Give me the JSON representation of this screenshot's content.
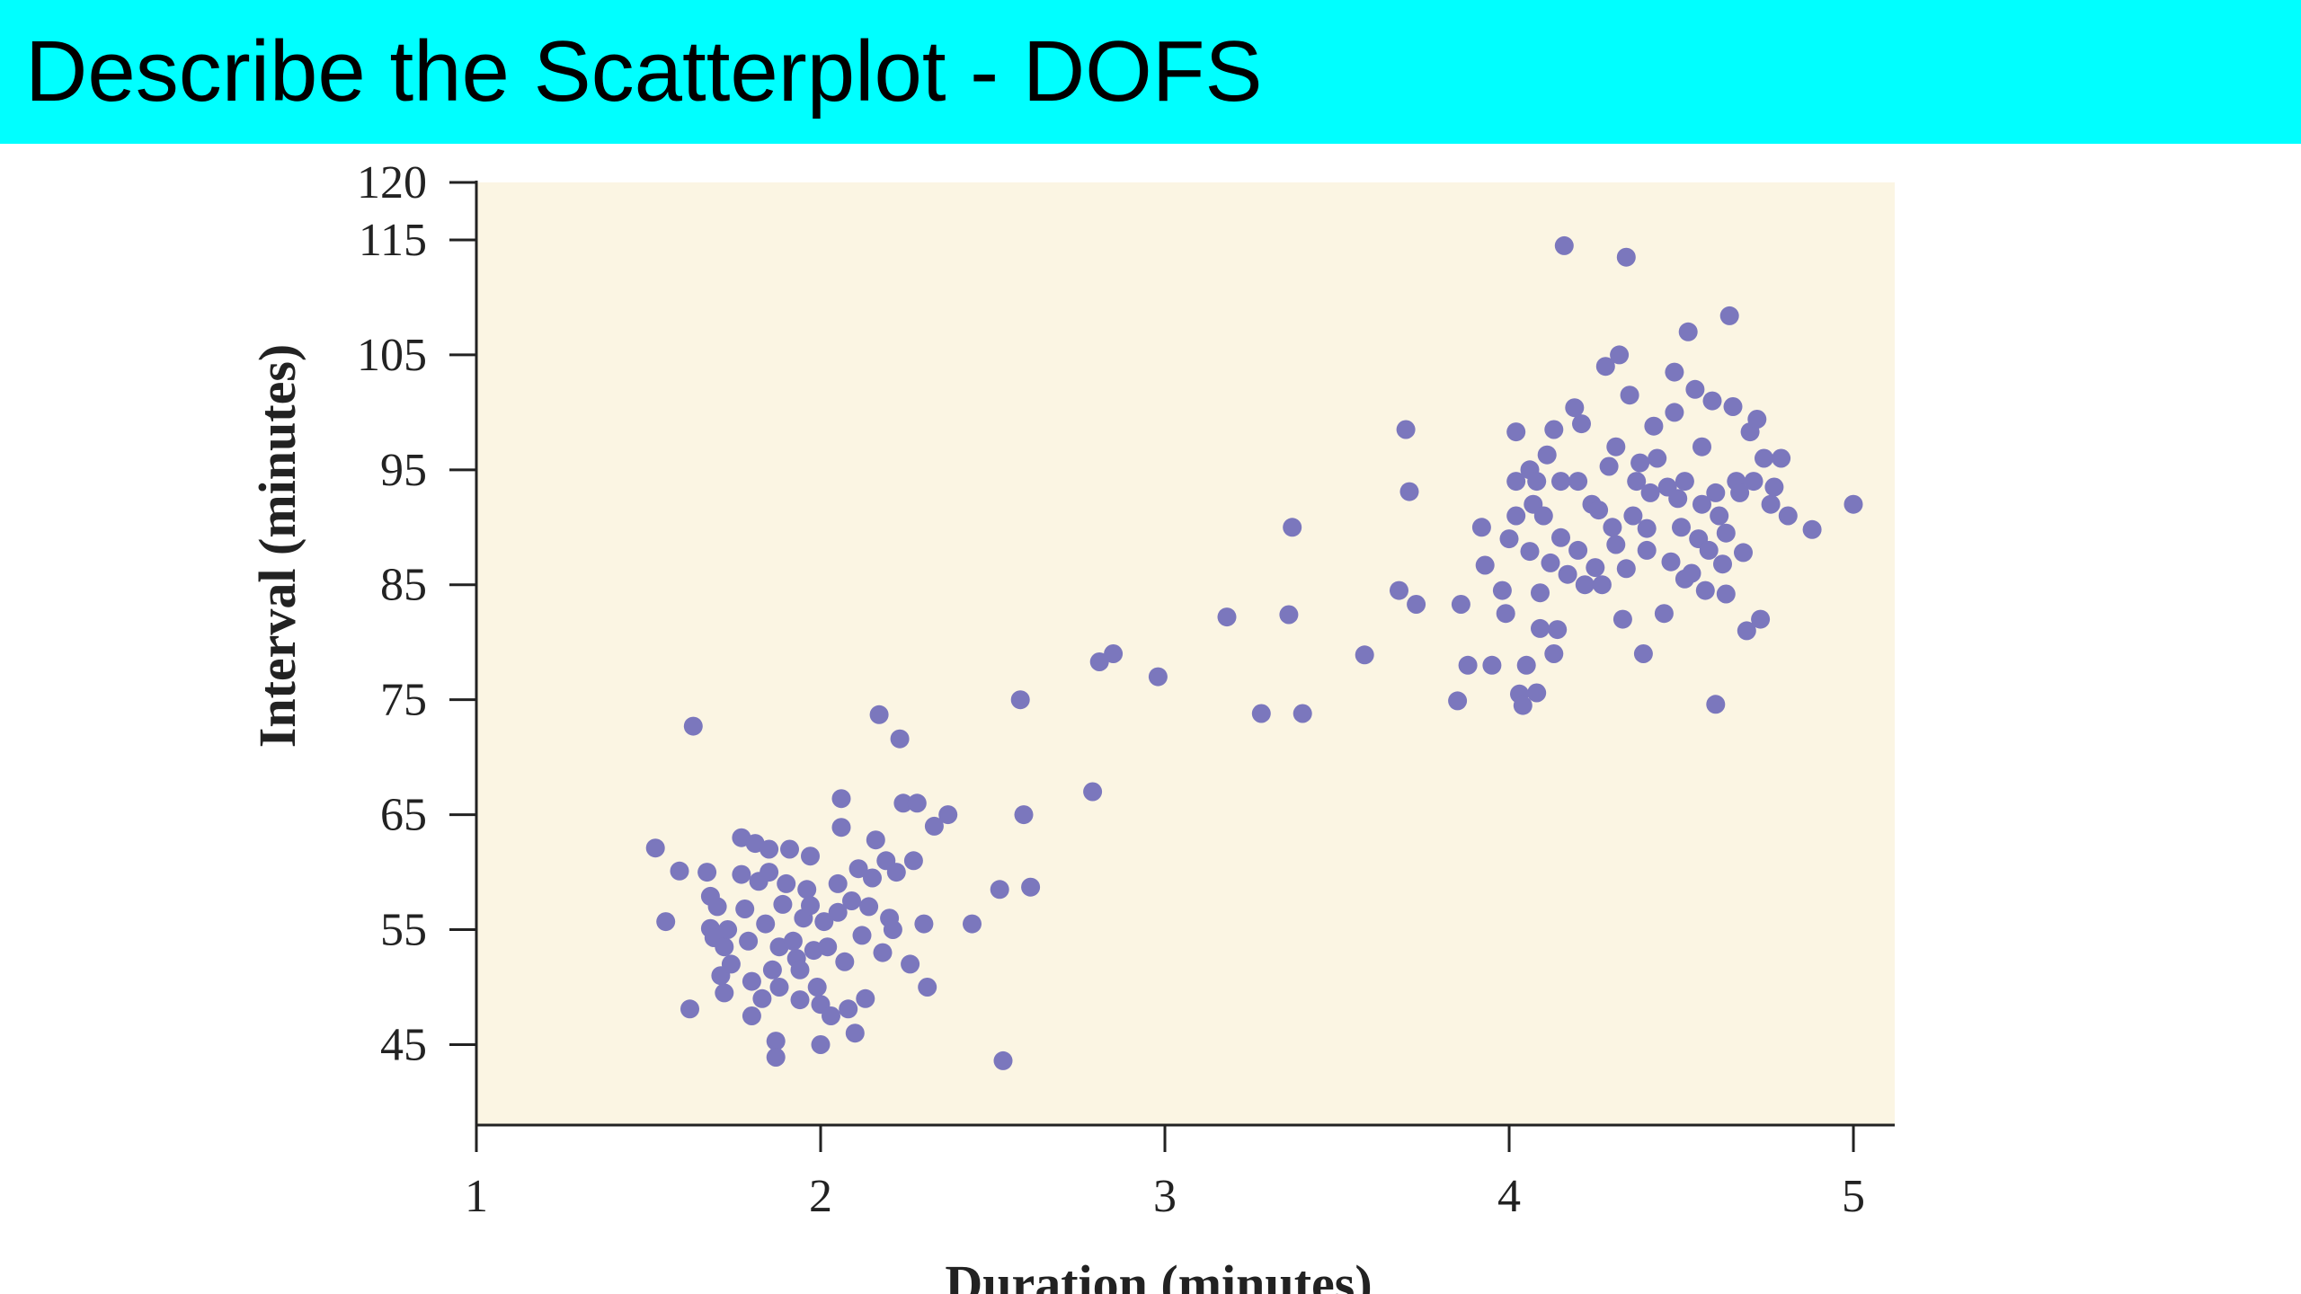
{
  "slide": {
    "title": "Describe the Scatterplot - DOFS"
  },
  "colors": {
    "title_bar": "#00ffff",
    "plot_background": "#fbf5e3",
    "point": "#7b77bd",
    "axis": "#222222"
  },
  "chart_data": {
    "type": "scatter",
    "title": "",
    "xlabel": "Duration (minutes)",
    "ylabel": "Interval (minutes)",
    "xlim": [
      1,
      5.12
    ],
    "ylim": [
      38,
      120
    ],
    "x_ticks": [
      1,
      2,
      3,
      4,
      5
    ],
    "y_ticks": [
      45,
      55,
      65,
      75,
      85,
      95,
      105,
      115,
      120
    ],
    "grid": false,
    "points": [
      [
        1.52,
        62.1
      ],
      [
        1.55,
        55.7
      ],
      [
        1.59,
        60.1
      ],
      [
        1.62,
        48.1
      ],
      [
        1.63,
        72.7
      ],
      [
        1.67,
        60.0
      ],
      [
        1.68,
        57.9
      ],
      [
        1.68,
        55.1
      ],
      [
        1.69,
        54.3
      ],
      [
        1.7,
        57.0
      ],
      [
        1.71,
        51.0
      ],
      [
        1.72,
        49.5
      ],
      [
        1.72,
        53.5
      ],
      [
        1.73,
        55.0
      ],
      [
        1.74,
        52.0
      ],
      [
        1.77,
        63.0
      ],
      [
        1.77,
        59.8
      ],
      [
        1.78,
        56.8
      ],
      [
        1.79,
        54.0
      ],
      [
        1.8,
        50.5
      ],
      [
        1.8,
        47.5
      ],
      [
        1.81,
        62.5
      ],
      [
        1.82,
        59.2
      ],
      [
        1.83,
        49.0
      ],
      [
        1.84,
        55.5
      ],
      [
        1.85,
        62.0
      ],
      [
        1.85,
        60.0
      ],
      [
        1.86,
        51.5
      ],
      [
        1.87,
        45.3
      ],
      [
        1.87,
        43.9
      ],
      [
        1.88,
        50.0
      ],
      [
        1.88,
        53.5
      ],
      [
        1.89,
        57.2
      ],
      [
        1.9,
        59.0
      ],
      [
        1.91,
        62.0
      ],
      [
        1.92,
        54.0
      ],
      [
        1.93,
        52.5
      ],
      [
        1.94,
        48.9
      ],
      [
        1.94,
        51.5
      ],
      [
        1.95,
        56.0
      ],
      [
        1.96,
        58.5
      ],
      [
        1.97,
        61.4
      ],
      [
        1.97,
        57.1
      ],
      [
        1.98,
        53.2
      ],
      [
        1.99,
        50.0
      ],
      [
        2.0,
        45.0
      ],
      [
        2.0,
        48.5
      ],
      [
        2.01,
        55.7
      ],
      [
        2.02,
        53.5
      ],
      [
        2.03,
        47.5
      ],
      [
        2.05,
        56.5
      ],
      [
        2.05,
        59.0
      ],
      [
        2.06,
        66.4
      ],
      [
        2.06,
        63.9
      ],
      [
        2.07,
        52.2
      ],
      [
        2.08,
        48.1
      ],
      [
        2.09,
        57.5
      ],
      [
        2.1,
        46.0
      ],
      [
        2.11,
        60.3
      ],
      [
        2.12,
        54.5
      ],
      [
        2.13,
        49.0
      ],
      [
        2.14,
        57.0
      ],
      [
        2.15,
        59.5
      ],
      [
        2.16,
        62.8
      ],
      [
        2.17,
        73.7
      ],
      [
        2.18,
        53.0
      ],
      [
        2.19,
        61.0
      ],
      [
        2.2,
        56.0
      ],
      [
        2.21,
        55.0
      ],
      [
        2.22,
        60.0
      ],
      [
        2.23,
        71.6
      ],
      [
        2.24,
        66.0
      ],
      [
        2.26,
        52.0
      ],
      [
        2.27,
        61.0
      ],
      [
        2.28,
        66.0
      ],
      [
        2.3,
        55.5
      ],
      [
        2.31,
        50.0
      ],
      [
        2.33,
        64.0
      ],
      [
        2.37,
        65.0
      ],
      [
        2.44,
        55.5
      ],
      [
        2.52,
        58.5
      ],
      [
        2.53,
        43.6
      ],
      [
        2.58,
        75.0
      ],
      [
        2.59,
        65.0
      ],
      [
        2.61,
        58.7
      ],
      [
        2.79,
        67.0
      ],
      [
        2.81,
        78.3
      ],
      [
        2.85,
        79.0
      ],
      [
        2.98,
        77.0
      ],
      [
        3.18,
        82.2
      ],
      [
        3.28,
        73.8
      ],
      [
        3.36,
        82.4
      ],
      [
        3.37,
        90.0
      ],
      [
        3.4,
        73.8
      ],
      [
        3.58,
        78.9
      ],
      [
        3.68,
        84.5
      ],
      [
        3.7,
        98.5
      ],
      [
        3.71,
        93.1
      ],
      [
        3.73,
        83.3
      ],
      [
        3.85,
        74.9
      ],
      [
        3.86,
        83.3
      ],
      [
        3.88,
        78.0
      ],
      [
        3.92,
        90.0
      ],
      [
        3.93,
        86.7
      ],
      [
        3.95,
        78.0
      ],
      [
        3.98,
        84.5
      ],
      [
        3.99,
        82.5
      ],
      [
        4.0,
        89.0
      ],
      [
        4.02,
        94.0
      ],
      [
        4.02,
        91.0
      ],
      [
        4.02,
        98.3
      ],
      [
        4.03,
        75.5
      ],
      [
        4.04,
        74.5
      ],
      [
        4.05,
        78.0
      ],
      [
        4.06,
        95.0
      ],
      [
        4.06,
        87.9
      ],
      [
        4.07,
        92.0
      ],
      [
        4.08,
        75.6
      ],
      [
        4.08,
        94.0
      ],
      [
        4.09,
        81.2
      ],
      [
        4.09,
        84.3
      ],
      [
        4.1,
        91.0
      ],
      [
        4.11,
        96.3
      ],
      [
        4.12,
        86.9
      ],
      [
        4.13,
        79.0
      ],
      [
        4.13,
        98.5
      ],
      [
        4.14,
        81.1
      ],
      [
        4.15,
        89.1
      ],
      [
        4.15,
        94.0
      ],
      [
        4.16,
        114.5
      ],
      [
        4.17,
        85.9
      ],
      [
        4.19,
        100.4
      ],
      [
        4.2,
        88.0
      ],
      [
        4.2,
        94.0
      ],
      [
        4.21,
        99.0
      ],
      [
        4.22,
        85.0
      ],
      [
        4.24,
        92.0
      ],
      [
        4.25,
        86.5
      ],
      [
        4.26,
        91.5
      ],
      [
        4.27,
        85.0
      ],
      [
        4.28,
        104.0
      ],
      [
        4.29,
        95.3
      ],
      [
        4.3,
        90.0
      ],
      [
        4.31,
        88.5
      ],
      [
        4.31,
        97.0
      ],
      [
        4.32,
        105.0
      ],
      [
        4.33,
        82.0
      ],
      [
        4.34,
        86.4
      ],
      [
        4.34,
        113.5
      ],
      [
        4.35,
        101.5
      ],
      [
        4.36,
        91.0
      ],
      [
        4.37,
        94.0
      ],
      [
        4.38,
        95.6
      ],
      [
        4.39,
        79.0
      ],
      [
        4.4,
        88.0
      ],
      [
        4.4,
        89.9
      ],
      [
        4.41,
        93.0
      ],
      [
        4.42,
        98.8
      ],
      [
        4.43,
        96.0
      ],
      [
        4.45,
        82.5
      ],
      [
        4.46,
        93.5
      ],
      [
        4.47,
        87.0
      ],
      [
        4.48,
        103.5
      ],
      [
        4.48,
        100.0
      ],
      [
        4.49,
        92.5
      ],
      [
        4.5,
        90.0
      ],
      [
        4.51,
        94.0
      ],
      [
        4.51,
        85.5
      ],
      [
        4.52,
        107.0
      ],
      [
        4.53,
        86.0
      ],
      [
        4.54,
        102.0
      ],
      [
        4.55,
        89.0
      ],
      [
        4.56,
        92.0
      ],
      [
        4.56,
        97.0
      ],
      [
        4.57,
        84.5
      ],
      [
        4.58,
        88.0
      ],
      [
        4.59,
        101.0
      ],
      [
        4.6,
        93.0
      ],
      [
        4.6,
        74.6
      ],
      [
        4.61,
        91.0
      ],
      [
        4.62,
        86.8
      ],
      [
        4.63,
        84.2
      ],
      [
        4.63,
        89.5
      ],
      [
        4.64,
        108.4
      ],
      [
        4.65,
        100.5
      ],
      [
        4.66,
        94.0
      ],
      [
        4.67,
        93.0
      ],
      [
        4.68,
        87.8
      ],
      [
        4.69,
        81.0
      ],
      [
        4.7,
        98.3
      ],
      [
        4.71,
        94.0
      ],
      [
        4.72,
        99.4
      ],
      [
        4.73,
        82.0
      ],
      [
        4.74,
        96.0
      ],
      [
        4.76,
        92.0
      ],
      [
        4.77,
        93.5
      ],
      [
        4.79,
        96.0
      ],
      [
        4.81,
        91.0
      ],
      [
        4.88,
        89.8
      ],
      [
        5.0,
        92.0
      ]
    ]
  }
}
